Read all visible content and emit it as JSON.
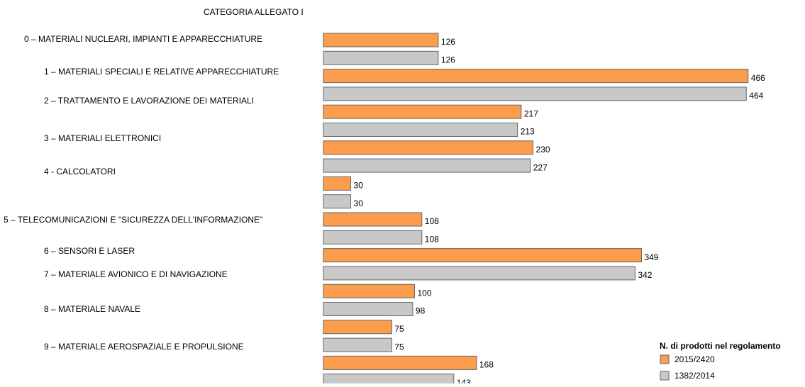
{
  "chart_data": {
    "type": "hbar",
    "title": "CATEGORIA ALLEGATO I",
    "categories": [
      "0 – MATERIALI NUCLEARI, IMPIANTI E APPARECCHIATURE",
      "1 – MATERIALI SPECIALI E RELATIVE APPARECCHIATURE",
      "2 – TRATTAMENTO E LAVORAZIONE DEI MATERIALI",
      "3 – MATERIALI ELETTRONICI",
      "4 - CALCOLATORI",
      "5 – TELECOMUNICAZIONI E \"SICUREZZA DELL'INFORMAZIONE\"",
      "6 – SENSORI E LASER",
      "7 – MATERIALE AVIONICO E DI NAVIGAZIONE",
      "8 – MATERIALE NAVALE",
      "9 – MATERIALE AEROSPAZIALE E PROPULSIONE"
    ],
    "legend_title": "N. di prodotti nel regolamento",
    "legend_position": "bottom-right",
    "series": [
      {
        "name": "2015/2420",
        "color": "#fb9d4c",
        "values": [
          126,
          466,
          217,
          230,
          30,
          108,
          349,
          100,
          75,
          168
        ]
      },
      {
        "name": "1382/2014",
        "color": "#c8c8c8",
        "values": [
          126,
          464,
          213,
          227,
          30,
          108,
          342,
          98,
          75,
          143
        ]
      }
    ]
  }
}
